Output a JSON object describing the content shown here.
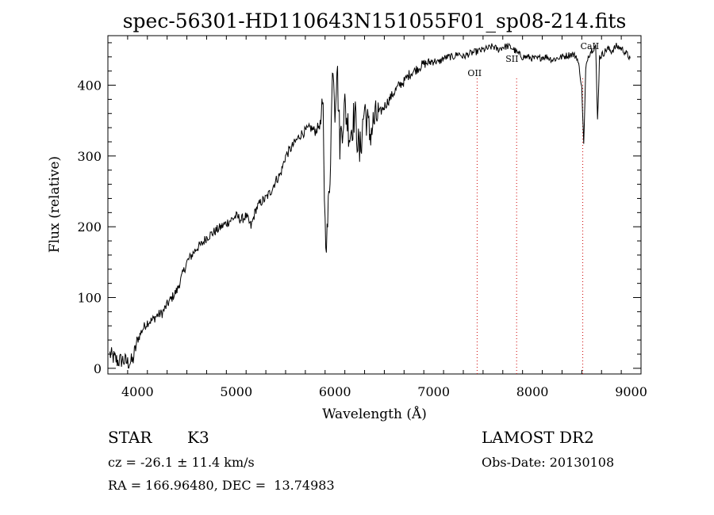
{
  "chart_data": {
    "type": "line",
    "title": "spec-56301-HD110643N151055F01_sp08-214.fits",
    "xlabel": "Wavelength (Å)",
    "ylabel": "Flux (relative)",
    "xlim": [
      3700,
      9100
    ],
    "ylim": [
      -8,
      470
    ],
    "xticks": [
      4000,
      5000,
      6000,
      7000,
      8000,
      9000
    ],
    "yticks": [
      0,
      100,
      200,
      300,
      400
    ],
    "grid": false,
    "series": [
      {
        "x": [
          3720,
          3760,
          3800,
          3850,
          3900,
          3950,
          4000,
          4050,
          4100,
          4150,
          4200,
          4250,
          4300,
          4350,
          4400,
          4450,
          4500,
          4550,
          4600,
          4650,
          4700,
          4750,
          4800,
          4850,
          4900,
          4950,
          5000,
          5050,
          5100,
          5150,
          5200,
          5250,
          5300,
          5350,
          5400,
          5450,
          5500,
          5550,
          5600,
          5650,
          5700,
          5750,
          5800,
          5850,
          5880,
          5900,
          5920,
          5950,
          5980,
          6000,
          6020,
          6050,
          6100,
          6150,
          6200,
          6250,
          6300,
          6350,
          6400,
          6450,
          6500,
          6550,
          6600,
          6650,
          6700,
          6750,
          6800,
          6850,
          6900,
          6950,
          7000,
          7050,
          7100,
          7150,
          7200,
          7250,
          7300,
          7350,
          7400,
          7450,
          7500,
          7550,
          7600,
          7650,
          7700,
          7750,
          7800,
          7850,
          7900,
          7950,
          8000,
          8050,
          8100,
          8150,
          8200,
          8250,
          8300,
          8350,
          8400,
          8450,
          8480,
          8500,
          8520,
          8540,
          8560,
          8600,
          8640,
          8660,
          8680,
          8720,
          8760,
          8800,
          8850,
          8900,
          8950,
          8990
        ],
        "values": [
          20,
          15,
          10,
          12,
          8,
          10,
          40,
          55,
          65,
          68,
          75,
          78,
          90,
          100,
          110,
          130,
          150,
          160,
          170,
          175,
          185,
          190,
          195,
          200,
          205,
          210,
          215,
          210,
          215,
          200,
          225,
          235,
          240,
          250,
          265,
          275,
          300,
          310,
          320,
          330,
          335,
          340,
          335,
          345,
          360,
          200,
          185,
          280,
          440,
          370,
          430,
          320,
          370,
          330,
          360,
          300,
          370,
          330,
          350,
          360,
          370,
          380,
          390,
          400,
          405,
          415,
          420,
          425,
          430,
          432,
          435,
          432,
          438,
          440,
          440,
          445,
          440,
          444,
          446,
          448,
          450,
          452,
          455,
          450,
          454,
          455,
          452,
          445,
          440,
          440,
          438,
          437,
          440,
          440,
          436,
          438,
          440,
          442,
          444,
          440,
          420,
          395,
          315,
          420,
          440,
          450,
          455,
          350,
          440,
          445,
          452,
          448,
          455,
          452,
          445,
          438
        ]
      }
    ],
    "annotations": [
      {
        "label": "OII",
        "x": 7440
      },
      {
        "label": "SII",
        "x": 7840
      },
      {
        "label": "CaII",
        "x": 8510
      }
    ]
  },
  "info": {
    "object_class": "STAR",
    "subclass": "K3",
    "survey": "LAMOST DR2",
    "cz": "cz = -26.1 ± 11.4 km/s",
    "obs_date": "Obs-Date: 20130108",
    "coords": "RA = 166.96480, DEC =  13.74983"
  },
  "colors": {
    "line": "#000000",
    "marker_lines": "#cc0000"
  }
}
